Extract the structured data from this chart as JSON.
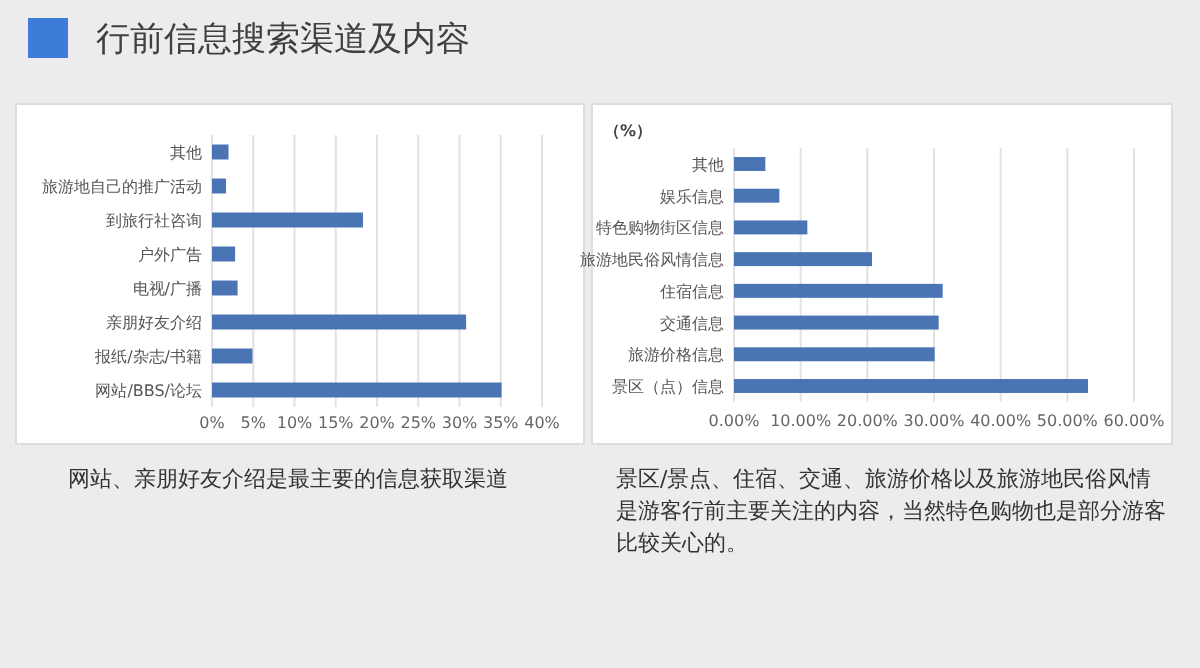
{
  "chart_data": [
    {
      "type": "bar",
      "orientation": "horizontal",
      "title": "行前信息搜索渠道及内容",
      "categories": [
        "其他",
        "旅游地自己的推广活动",
        "到旅行社咨询",
        "户外广告",
        "电视/广播",
        "亲朋好友介绍",
        "报纸/杂志/书籍",
        "网站/BBS/论坛"
      ],
      "values": [
        2.0,
        1.7,
        18.3,
        2.8,
        3.1,
        30.8,
        4.9,
        35.1
      ],
      "color": "#4a74b4",
      "xlim": [
        0,
        40
      ],
      "xticks": [
        {
          "value": 0,
          "label": "0%"
        },
        {
          "value": 5,
          "label": "5%"
        },
        {
          "value": 10,
          "label": "10%"
        },
        {
          "value": 15,
          "label": "15%"
        },
        {
          "value": 20,
          "label": "20%"
        },
        {
          "value": 25,
          "label": "25%"
        },
        {
          "value": 30,
          "label": "30%"
        },
        {
          "value": 35,
          "label": "35%"
        },
        {
          "value": 40,
          "label": "40%"
        }
      ],
      "grid": "x",
      "annotations": [
        "网站、亲朋好友介绍是最主要的信息获取渠道"
      ]
    },
    {
      "type": "bar",
      "orientation": "horizontal",
      "categories": [
        "其他",
        "娱乐信息",
        "特色购物街区信息",
        "旅游地民俗风情信息",
        "住宿信息",
        "交通信息",
        "旅游价格信息",
        "景区（点）信息"
      ],
      "values": [
        4.7,
        6.8,
        11.0,
        20.7,
        31.3,
        30.7,
        30.1,
        53.1
      ],
      "color": "#4a74b4",
      "xlim": [
        0,
        60
      ],
      "xticks": [
        {
          "value": 0,
          "label": "0.00%"
        },
        {
          "value": 10,
          "label": "10.00%"
        },
        {
          "value": 20,
          "label": "20.00%"
        },
        {
          "value": 30,
          "label": "30.00%"
        },
        {
          "value": 40,
          "label": "40.00%"
        },
        {
          "value": 50,
          "label": "50.00%"
        },
        {
          "value": 60,
          "label": "60.00%"
        }
      ],
      "grid": "x",
      "annotations": [
        "（%）",
        "景区/景点、住宿、交通、旅游价格以及旅游地民俗风情是游客行前主要关注的内容，当然特色购物也是部分游客比较关心的。"
      ]
    }
  ]
}
